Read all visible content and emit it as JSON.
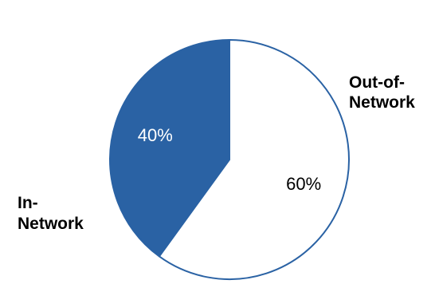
{
  "chart_data": {
    "type": "pie",
    "slices": [
      {
        "category": "Out-of-Network",
        "label_lines": [
          "Out-of-",
          "Network"
        ],
        "value": 60,
        "value_label": "60%",
        "fill": "#ffffff",
        "stroke": "#2a62a4",
        "text_color": "#000000"
      },
      {
        "category": "In-Network",
        "label_lines": [
          "In-",
          "Network"
        ],
        "value": 40,
        "value_label": "40%",
        "fill": "#2a62a4",
        "stroke": "#2a62a4",
        "text_color": "#ffffff"
      }
    ],
    "start_angle_deg": 0,
    "direction": "clockwise",
    "legend": "none"
  }
}
